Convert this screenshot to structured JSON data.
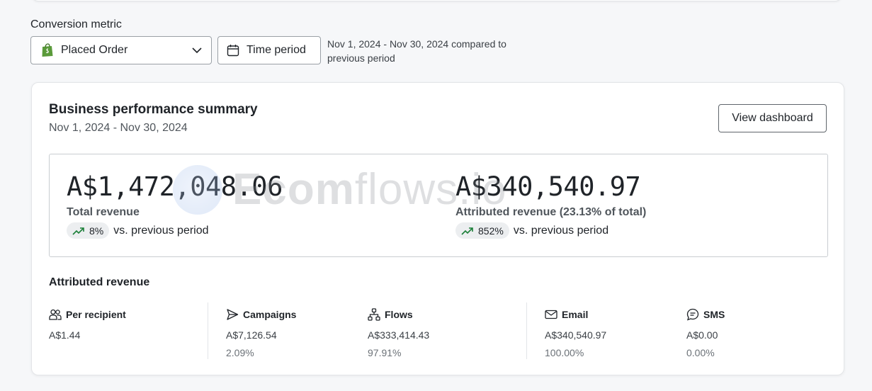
{
  "conversion_metric": {
    "label": "Conversion metric",
    "selected": "Placed Order",
    "icon": "shopify-bag-icon"
  },
  "time_period": {
    "button_label": "Time period",
    "description": "Nov 1, 2024 - Nov 30, 2024 compared to previous period"
  },
  "summary": {
    "title": "Business performance summary",
    "date_range": "Nov 1, 2024 - Nov 30, 2024",
    "view_button": "View dashboard",
    "total": {
      "value": "A$1,472,048.06",
      "label": "Total revenue",
      "change": "8%",
      "vs": "vs. previous period"
    },
    "attributed": {
      "value": "A$340,540.97",
      "label": "Attributed revenue (23.13% of total)",
      "change": "852%",
      "vs": "vs. previous period"
    }
  },
  "watermark": {
    "bold": "Ecom",
    "thin": "flows.io"
  },
  "attributed_revenue": {
    "title": "Attributed revenue",
    "per_recipient": {
      "label": "Per recipient",
      "value": "A$1.44"
    },
    "campaigns": {
      "label": "Campaigns",
      "value": "A$7,126.54",
      "pct": "2.09%"
    },
    "flows": {
      "label": "Flows",
      "value": "A$333,414.43",
      "pct": "97.91%"
    },
    "email": {
      "label": "Email",
      "value": "A$340,540.97",
      "pct": "100.00%"
    },
    "sms": {
      "label": "SMS",
      "value": "A$0.00",
      "pct": "0.00%"
    }
  },
  "colors": {
    "trend_green": "#1a7f37",
    "shopify_green": "#5a9a3a"
  }
}
